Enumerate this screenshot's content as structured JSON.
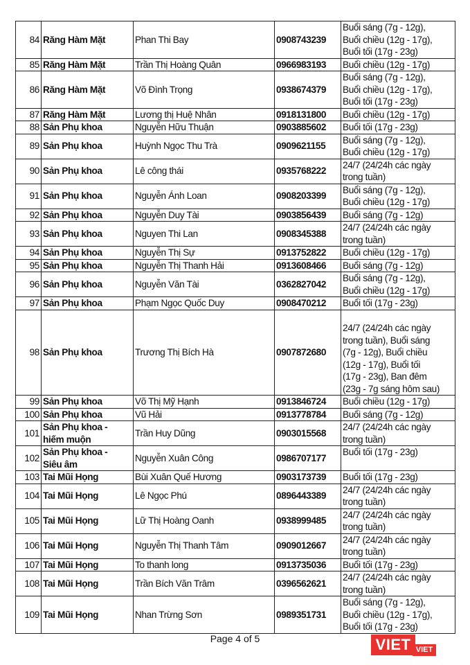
{
  "table": {
    "rows": [
      {
        "num": "84",
        "specialty": "Răng Hàm Mặt",
        "name": "Phan Thi Bay",
        "phone": "0908743239",
        "time": "Buổi sáng (7g - 12g),\nBuổi chiều (12g - 17g),\nBuổi tối (17g - 23g)"
      },
      {
        "num": "85",
        "specialty": "Răng Hàm Mặt",
        "name": "Trần Thị Hoàng Quân",
        "phone": "0966983193",
        "time": "Buổi chiều (12g - 17g)"
      },
      {
        "num": "86",
        "specialty": "Răng Hàm Mặt",
        "name": "Võ Đình Trọng",
        "phone": "0938674379",
        "time": "Buổi sáng (7g - 12g),\nBuổi chiều (12g - 17g),\nBuổi tối (17g - 23g)"
      },
      {
        "num": "87",
        "specialty": "Răng Hàm Mặt",
        "name": "Lương thị Huệ Nhân",
        "phone": "0918131800",
        "time": "Buổi chiều (12g - 17g)"
      },
      {
        "num": "88",
        "specialty": "Sản Phụ khoa",
        "name": "Nguyễn Hữu Thuận",
        "phone": "0903885602",
        "time": "Buổi tối (17g - 23g)"
      },
      {
        "num": "89",
        "specialty": "Sản Phụ khoa",
        "name": "Huỳnh Ngọc Thu Trà",
        "phone": "0909621155",
        "time": "Buổi sáng (7g - 12g),\nBuổi chiều (12g - 17g)"
      },
      {
        "num": "90",
        "specialty": "Sản Phụ khoa",
        "name": "Lê công thái",
        "phone": "0935768222",
        "time": "24/7 (24/24h các ngày\ntrong tuần)"
      },
      {
        "num": "91",
        "specialty": "Sản Phụ khoa",
        "name": "Nguyễn Ánh Loan",
        "phone": "0908203399",
        "time": "Buổi sáng (7g - 12g),\nBuổi chiều (12g - 17g)"
      },
      {
        "num": "92",
        "specialty": "Sản Phụ khoa",
        "name": "Nguyễn Duy Tài",
        "phone": "0903856439",
        "time": "Buổi sáng (7g - 12g)"
      },
      {
        "num": "93",
        "specialty": "Sản Phụ khoa",
        "name": "Nguyen Thi Lan",
        "phone": "0908345388",
        "time": "24/7 (24/24h các ngày\ntrong tuần)"
      },
      {
        "num": "94",
        "specialty": "Sản Phụ khoa",
        "name": "Nguyễn Thị Sự",
        "phone": "0913752822",
        "time": "Buổi chiều (12g - 17g)"
      },
      {
        "num": "95",
        "specialty": "Sản Phụ khoa",
        "name": "Nguyễn Thị Thanh Hải",
        "phone": "0913608466",
        "time": "Buổi sáng (7g - 12g)"
      },
      {
        "num": "96",
        "specialty": "Sản Phụ khoa",
        "name": "Nguyễn Văn Tài",
        "phone": "0362827042",
        "time": "Buổi sáng (7g - 12g),\nBuổi chiều (12g - 17g)"
      },
      {
        "num": "97",
        "specialty": "Sản Phụ khoa",
        "name": "Phạm Ngọc Quốc Duy",
        "phone": "0908470212",
        "time": "Buổi tối (17g - 23g)"
      },
      {
        "num": "98",
        "specialty": "Sản Phụ khoa",
        "name": "Trương Thị Bích Hà",
        "phone": "0907872680",
        "time": "\n24/7 (24/24h các ngày\ntrong tuần), Buổi sáng\n(7g - 12g), Buổi chiều\n(12g - 17g), Buổi tối\n(17g - 23g), Ban đêm\n(23g - 7g sáng hôm sau)"
      },
      {
        "num": "99",
        "specialty": "Sản Phụ khoa",
        "name": "Võ Thị Mỹ Hạnh",
        "phone": "0913846724",
        "time": "Buổi chiều (12g - 17g)"
      },
      {
        "num": "100",
        "specialty": "Sản Phụ khoa",
        "name": "Vũ Hải",
        "phone": "0913778784",
        "time": "Buổi sáng (7g - 12g)"
      },
      {
        "num": "101",
        "specialty": "Sản Phụ khoa -\nhiếm muộn",
        "name": "Trần Huy Dũng",
        "phone": "0903015568",
        "time": "24/7 (24/24h các ngày\ntrong tuần)"
      },
      {
        "num": "102",
        "specialty": "Sản Phụ khoa -\nSiêu âm",
        "name": "Nguyễn Xuân Công",
        "phone": "0986707177",
        "time": "Buổi tối (17g - 23g)"
      },
      {
        "num": "103",
        "specialty": "Tai Mũi Họng",
        "name": "Bùi Xuân Quế Hương",
        "phone": "0903173739",
        "time": "Buổi tối (17g - 23g)"
      },
      {
        "num": "104",
        "specialty": "Tai Mũi Họng",
        "name": "Lê Ngọc Phú",
        "phone": "0896443389",
        "time": "24/7 (24/24h các ngày\ntrong tuần)"
      },
      {
        "num": "105",
        "specialty": "Tai Mũi Họng",
        "name": "Lữ Thị Hoàng Oanh",
        "phone": "0938999485",
        "time": "24/7 (24/24h các ngày\ntrong tuần)"
      },
      {
        "num": "106",
        "specialty": "Tai Mũi Họng",
        "name": "Nguyễn Thị Thanh Tâm",
        "phone": "0909012667",
        "time": "24/7 (24/24h các ngày\ntrong tuần)"
      },
      {
        "num": "107",
        "specialty": "Tai Mũi Họng",
        "name": "To thanh long",
        "phone": "0913735036",
        "time": "Buổi tối (17g - 23g)"
      },
      {
        "num": "108",
        "specialty": "Tai Mũi Họng",
        "name": "Trần Bích Văn Trâm",
        "phone": "0396562621",
        "time": "24/7 (24/24h các ngày\ntrong tuần)"
      },
      {
        "num": "109",
        "specialty": "Tai Mũi Họng",
        "name": "Nhan Trừng Sơn",
        "phone": "0989351731",
        "time": "Buổi sáng (7g - 12g),\nBuổi chiều (12g - 17g),\nBuổi tối (17g - 23g)"
      }
    ]
  },
  "footer": {
    "page_label": "Page 4 of 5"
  },
  "watermark": {
    "logo_text": "VIET",
    "logo_sub": "VIET",
    "color": "#e8322f"
  }
}
